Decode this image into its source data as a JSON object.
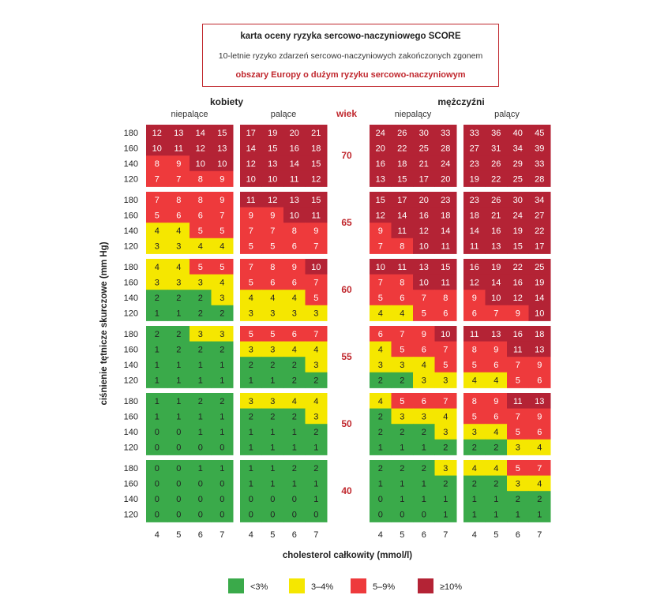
{
  "header": {
    "title": "karta oceny ryzyka sercowo-naczyniowego SCORE",
    "subtitle": "10-letnie ryzyko zdarzeń sercowo-naczyniowych zakończonych zgonem",
    "region": "obszary Europy o dużym ryzyku sercowo-naczyniowym"
  },
  "chart_data": {
    "type": "heatmap",
    "groups": [
      {
        "label": "kobiety",
        "subgroups": [
          "niepalące",
          "palące"
        ]
      },
      {
        "label": "mężczyźni",
        "subgroups": [
          "niepalący",
          "palący"
        ]
      }
    ],
    "age_label": "wiek",
    "ages": [
      "70",
      "65",
      "60",
      "55",
      "50",
      "40"
    ],
    "sbp_ticks": [
      "180",
      "160",
      "140",
      "120"
    ],
    "chol_ticks": [
      "4",
      "5",
      "6",
      "7"
    ],
    "ylabel": "ciśnienie tętnicze skurczowe (mm Hg)",
    "xlabel": "cholesterol całkowity (mmol/l)",
    "color_scale": [
      {
        "max": 2,
        "color": "#3aaa4a",
        "label": "<3%"
      },
      {
        "max": 4,
        "color": "#f5e700",
        "label": "3–4%"
      },
      {
        "max": 9,
        "color": "#ee3a3c",
        "label": "5–9%"
      },
      {
        "max": 999,
        "color": "#b42335",
        "label": "≥10%"
      }
    ],
    "panels": [
      {
        "sex": 0,
        "smoker": 0,
        "age": 0,
        "values": [
          [
            12,
            13,
            14,
            15
          ],
          [
            10,
            11,
            12,
            13
          ],
          [
            8,
            9,
            10,
            10
          ],
          [
            7,
            7,
            8,
            9
          ]
        ]
      },
      {
        "sex": 0,
        "smoker": 1,
        "age": 0,
        "values": [
          [
            17,
            19,
            20,
            21
          ],
          [
            14,
            15,
            16,
            18
          ],
          [
            12,
            13,
            14,
            15
          ],
          [
            10,
            10,
            11,
            12
          ]
        ]
      },
      {
        "sex": 1,
        "smoker": 0,
        "age": 0,
        "values": [
          [
            24,
            26,
            30,
            33
          ],
          [
            20,
            22,
            25,
            28
          ],
          [
            16,
            18,
            21,
            24
          ],
          [
            13,
            15,
            17,
            20
          ]
        ]
      },
      {
        "sex": 1,
        "smoker": 1,
        "age": 0,
        "values": [
          [
            33,
            36,
            40,
            45
          ],
          [
            27,
            31,
            34,
            39
          ],
          [
            23,
            26,
            29,
            33
          ],
          [
            19,
            22,
            25,
            28
          ]
        ]
      },
      {
        "sex": 0,
        "smoker": 0,
        "age": 1,
        "values": [
          [
            7,
            8,
            8,
            9
          ],
          [
            5,
            6,
            6,
            7
          ],
          [
            4,
            4,
            5,
            5
          ],
          [
            3,
            3,
            4,
            4
          ]
        ]
      },
      {
        "sex": 0,
        "smoker": 1,
        "age": 1,
        "values": [
          [
            11,
            12,
            13,
            15
          ],
          [
            9,
            9,
            10,
            11
          ],
          [
            7,
            7,
            8,
            9
          ],
          [
            5,
            5,
            6,
            7
          ]
        ]
      },
      {
        "sex": 1,
        "smoker": 0,
        "age": 1,
        "values": [
          [
            15,
            17,
            20,
            23
          ],
          [
            12,
            14,
            16,
            18
          ],
          [
            9,
            11,
            12,
            14
          ],
          [
            7,
            8,
            10,
            11
          ]
        ]
      },
      {
        "sex": 1,
        "smoker": 1,
        "age": 1,
        "values": [
          [
            23,
            26,
            30,
            34
          ],
          [
            18,
            21,
            24,
            27
          ],
          [
            14,
            16,
            19,
            22
          ],
          [
            11,
            13,
            15,
            17
          ]
        ]
      },
      {
        "sex": 0,
        "smoker": 0,
        "age": 2,
        "values": [
          [
            4,
            4,
            5,
            5
          ],
          [
            3,
            3,
            3,
            4
          ],
          [
            2,
            2,
            2,
            3
          ],
          [
            1,
            1,
            2,
            2
          ]
        ]
      },
      {
        "sex": 0,
        "smoker": 1,
        "age": 2,
        "values": [
          [
            7,
            8,
            9,
            10
          ],
          [
            5,
            6,
            6,
            7
          ],
          [
            4,
            4,
            4,
            5
          ],
          [
            3,
            3,
            3,
            3
          ]
        ]
      },
      {
        "sex": 1,
        "smoker": 0,
        "age": 2,
        "values": [
          [
            10,
            11,
            13,
            15
          ],
          [
            7,
            8,
            10,
            11
          ],
          [
            5,
            6,
            7,
            8
          ],
          [
            4,
            4,
            5,
            6
          ]
        ]
      },
      {
        "sex": 1,
        "smoker": 1,
        "age": 2,
        "values": [
          [
            16,
            19,
            22,
            25
          ],
          [
            12,
            14,
            16,
            19
          ],
          [
            9,
            10,
            12,
            14
          ],
          [
            6,
            7,
            9,
            10
          ]
        ]
      },
      {
        "sex": 0,
        "smoker": 0,
        "age": 3,
        "values": [
          [
            2,
            2,
            3,
            3
          ],
          [
            1,
            2,
            2,
            2
          ],
          [
            1,
            1,
            1,
            1
          ],
          [
            1,
            1,
            1,
            1
          ]
        ]
      },
      {
        "sex": 0,
        "smoker": 1,
        "age": 3,
        "values": [
          [
            5,
            5,
            6,
            7
          ],
          [
            3,
            3,
            4,
            4
          ],
          [
            2,
            2,
            2,
            3
          ],
          [
            1,
            1,
            2,
            2
          ]
        ]
      },
      {
        "sex": 1,
        "smoker": 0,
        "age": 3,
        "values": [
          [
            6,
            7,
            9,
            10
          ],
          [
            4,
            5,
            6,
            7
          ],
          [
            3,
            3,
            4,
            5
          ],
          [
            2,
            2,
            3,
            3
          ]
        ]
      },
      {
        "sex": 1,
        "smoker": 1,
        "age": 3,
        "values": [
          [
            11,
            13,
            16,
            18
          ],
          [
            8,
            9,
            11,
            13
          ],
          [
            5,
            6,
            7,
            9
          ],
          [
            4,
            4,
            5,
            6
          ]
        ]
      },
      {
        "sex": 0,
        "smoker": 0,
        "age": 4,
        "values": [
          [
            1,
            1,
            2,
            2
          ],
          [
            1,
            1,
            1,
            1
          ],
          [
            0,
            0,
            1,
            1
          ],
          [
            0,
            0,
            0,
            0
          ]
        ]
      },
      {
        "sex": 0,
        "smoker": 1,
        "age": 4,
        "values": [
          [
            3,
            3,
            4,
            4
          ],
          [
            2,
            2,
            2,
            3
          ],
          [
            1,
            1,
            1,
            2
          ],
          [
            1,
            1,
            1,
            1
          ]
        ]
      },
      {
        "sex": 1,
        "smoker": 0,
        "age": 4,
        "values": [
          [
            4,
            5,
            6,
            7
          ],
          [
            2,
            3,
            3,
            4
          ],
          [
            2,
            2,
            2,
            3
          ],
          [
            1,
            1,
            1,
            2
          ]
        ]
      },
      {
        "sex": 1,
        "smoker": 1,
        "age": 4,
        "values": [
          [
            8,
            9,
            11,
            13
          ],
          [
            5,
            6,
            7,
            9
          ],
          [
            3,
            4,
            5,
            6
          ],
          [
            2,
            2,
            3,
            4
          ]
        ]
      },
      {
        "sex": 0,
        "smoker": 0,
        "age": 5,
        "values": [
          [
            0,
            0,
            1,
            1
          ],
          [
            0,
            0,
            0,
            0
          ],
          [
            0,
            0,
            0,
            0
          ],
          [
            0,
            0,
            0,
            0
          ]
        ]
      },
      {
        "sex": 0,
        "smoker": 1,
        "age": 5,
        "values": [
          [
            1,
            1,
            2,
            2
          ],
          [
            1,
            1,
            1,
            1
          ],
          [
            0,
            0,
            0,
            1
          ],
          [
            0,
            0,
            0,
            0
          ]
        ]
      },
      {
        "sex": 1,
        "smoker": 0,
        "age": 5,
        "values": [
          [
            2,
            2,
            2,
            3
          ],
          [
            1,
            1,
            1,
            2
          ],
          [
            0,
            1,
            1,
            1
          ],
          [
            0,
            0,
            0,
            1
          ]
        ]
      },
      {
        "sex": 1,
        "smoker": 1,
        "age": 5,
        "values": [
          [
            4,
            4,
            5,
            7
          ],
          [
            2,
            2,
            3,
            4
          ],
          [
            1,
            1,
            2,
            2
          ],
          [
            1,
            1,
            1,
            1
          ]
        ]
      }
    ]
  }
}
